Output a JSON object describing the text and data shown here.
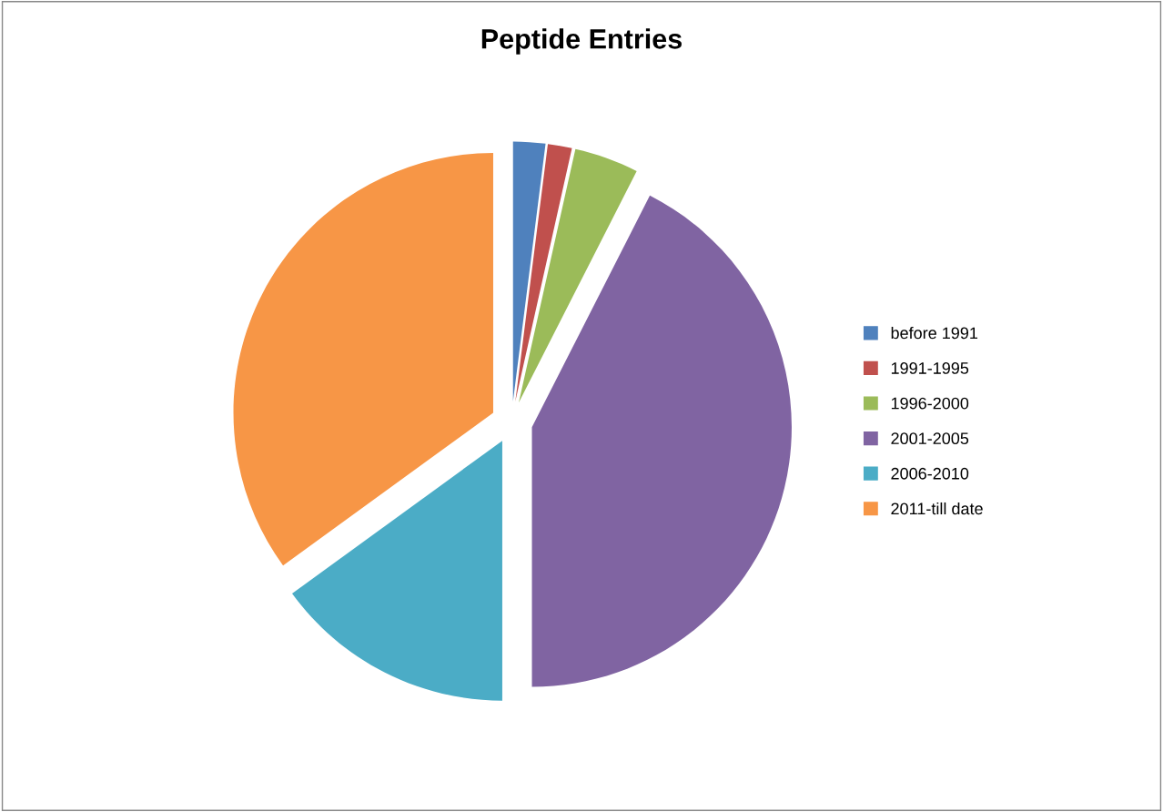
{
  "chart_data": {
    "type": "pie",
    "title": "Peptide Entries",
    "categories": [
      "before 1991",
      "1991-1995",
      "1996-2000",
      "2001-2005",
      "2006-2010",
      "2011-till date"
    ],
    "values": [
      2,
      1.5,
      4,
      42.5,
      15,
      35
    ],
    "colors": [
      "#4f81bd",
      "#c0504d",
      "#9bbb59",
      "#8064a2",
      "#4bacc6",
      "#f79646"
    ],
    "legend": "right"
  }
}
